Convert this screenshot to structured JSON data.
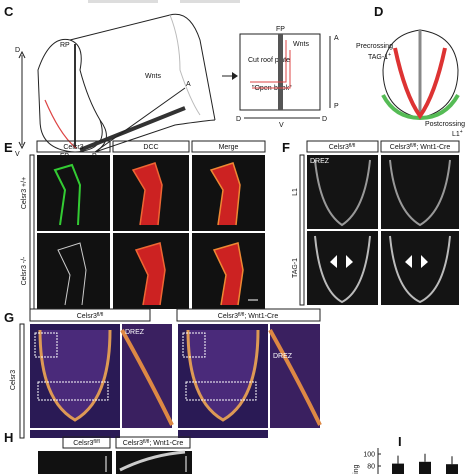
{
  "panel_labels": [
    "C",
    "D",
    "E",
    "F",
    "G",
    "H",
    "I"
  ],
  "c": {
    "rp": "RP",
    "fp": "FP",
    "d": "D",
    "v": "V",
    "a": "A",
    "p": "P",
    "wnts": "Wnts",
    "cut": "Cut roof plate",
    "open_book": "\"Open-book\"",
    "book_fp": "FP",
    "book_wnts": "Wnts",
    "book_a": "A",
    "book_p": "P",
    "book_d_left": "D",
    "book_v": "V",
    "book_d_right": "D"
  },
  "d": {
    "pre": "Precrossing",
    "pre_marker": "TAG-1",
    "pre_sup": "+",
    "post": "Postcrossing",
    "post_marker": "L1",
    "post_sup": "+"
  },
  "e": {
    "columns": [
      "Celsr3",
      "DCC",
      "Merge"
    ],
    "rows": [
      "Celsr3 +/+",
      "Celsr3 -/-"
    ]
  },
  "f": {
    "control": [
      "Celsr3",
      "fl/fl"
    ],
    "mutant": [
      "Celsr3",
      "fl/fl",
      "; Wnt1-Cre"
    ],
    "rows": [
      "L1",
      "TAG-1"
    ],
    "drez": "DREZ"
  },
  "g": {
    "control": [
      "Celsr3",
      "fl/fl"
    ],
    "mutant": [
      "Celsr3",
      "fl/fl",
      "; Wnt1-Cre"
    ],
    "row": "Celsr3",
    "drez_control": "DREZ",
    "drez_mutant": "DREZ"
  },
  "h": {
    "control": [
      "Celsr3",
      "fl/fl"
    ],
    "mutant": [
      "Celsr3",
      "fl/fl",
      "; Wnt1-Cre"
    ]
  },
  "i": {
    "axis_label": "ling",
    "yticks": [
      100,
      80
    ],
    "values": [
      84,
      87,
      83
    ]
  }
}
